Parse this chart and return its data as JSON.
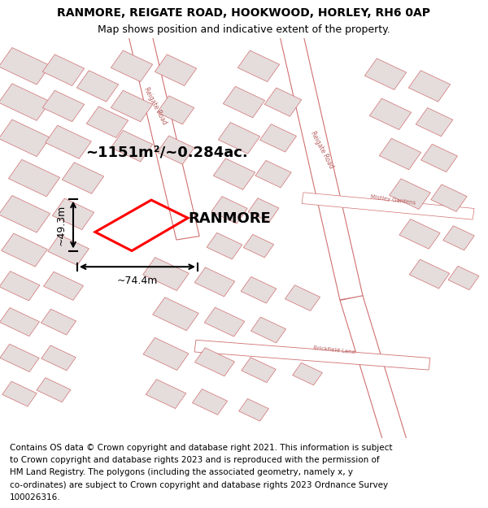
{
  "title": "RANMORE, REIGATE ROAD, HOOKWOOD, HORLEY, RH6 0AP",
  "subtitle": "Map shows position and indicative extent of the property.",
  "footer_lines": [
    "Contains OS data © Crown copyright and database right 2021. This information is subject",
    "to Crown copyright and database rights 2023 and is reproduced with the permission of",
    "HM Land Registry. The polygons (including the associated geometry, namely x, y",
    "co-ordinates) are subject to Crown copyright and database rights 2023 Ordnance Survey",
    "100026316."
  ],
  "map_bg_color": "#f7f2f2",
  "building_fill": "#e5dcdc",
  "building_edge": "#d07070",
  "road_fill": "#ffffff",
  "road_edge": "#d07070",
  "area_text": "~1151m²/~0.284ac.",
  "property_name": "RANMORE",
  "dim_width": "~74.4m",
  "dim_height": "~49.3m",
  "title_fontsize": 10,
  "subtitle_fontsize": 9,
  "footer_fontsize": 7.5
}
